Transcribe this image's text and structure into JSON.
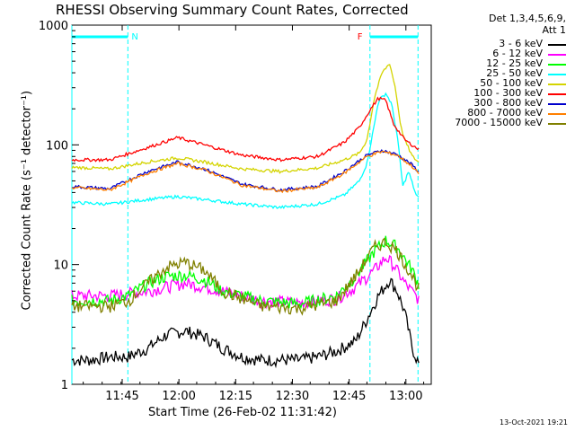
{
  "header": {
    "title": "RHESSI Observing Summary Count Rates, Corrected",
    "det_line1": "Det 1,3,4,5,6,9,",
    "det_line2": "Att 1",
    "timestamp": "13-Oct-2021 19:21"
  },
  "chart_data": {
    "type": "line",
    "title": "RHESSI Observing Summary Count Rates, Corrected",
    "xlabel": "Start Time (26-Feb-02 11:31:42)",
    "ylabel": "Corrected Count Rate (s⁻¹ detector⁻¹)",
    "yscale": "log",
    "ylim": [
      1,
      1000
    ],
    "xlim_minutes": [
      0,
      95
    ],
    "x_ticks": [
      {
        "label": "11:45",
        "t": 13.3
      },
      {
        "label": "12:00",
        "t": 28.3
      },
      {
        "label": "12:15",
        "t": 43.3
      },
      {
        "label": "12:30",
        "t": 58.3
      },
      {
        "label": "12:45",
        "t": 73.3
      },
      {
        "label": "13:00",
        "t": 88.3
      }
    ],
    "y_ticks": [
      {
        "label": "1",
        "v": 1
      },
      {
        "label": "10",
        "v": 10
      },
      {
        "label": "100",
        "v": 100
      },
      {
        "label": "1000",
        "v": 1000
      }
    ],
    "annotations": [
      {
        "label": "N",
        "t_start": 0,
        "t_end": 14.8,
        "color": "#00ffff"
      },
      {
        "label": "F",
        "t_start": 78.8,
        "t_end": 91.5,
        "color": "#00ffff"
      }
    ],
    "series": [
      {
        "name": "3 - 6 keV",
        "color": "#000000",
        "t": [
          0,
          5,
          10,
          15,
          20,
          25,
          30,
          35,
          40,
          45,
          50,
          55,
          60,
          65,
          70,
          75,
          78,
          81,
          84,
          86,
          88,
          90,
          92
        ],
        "values": [
          1.6,
          1.6,
          1.7,
          1.7,
          2.0,
          2.6,
          2.8,
          2.5,
          2.0,
          1.7,
          1.6,
          1.6,
          1.6,
          1.7,
          1.9,
          2.3,
          3.5,
          5.5,
          7.5,
          6.0,
          4.0,
          2.0,
          1.4
        ]
      },
      {
        "name": "6 - 12 keV",
        "color": "#ff00ff",
        "t": [
          0,
          10,
          20,
          25,
          30,
          35,
          40,
          50,
          60,
          70,
          75,
          80,
          83,
          85,
          88,
          92
        ],
        "values": [
          5.5,
          5.5,
          6.0,
          6.5,
          7.0,
          6.5,
          6.0,
          5.0,
          4.8,
          5.2,
          6.5,
          9.0,
          11.5,
          10.0,
          7.0,
          5.0
        ]
      },
      {
        "name": "12 - 25 keV",
        "color": "#00ff00",
        "t": [
          0,
          10,
          15,
          20,
          25,
          30,
          35,
          40,
          50,
          60,
          70,
          75,
          80,
          83,
          86,
          90,
          92
        ],
        "values": [
          5.0,
          5.0,
          5.5,
          7.0,
          8.0,
          8.2,
          7.5,
          6.0,
          5.0,
          4.7,
          5.5,
          8.0,
          13.0,
          16.0,
          14.0,
          9.0,
          6.5
        ]
      },
      {
        "name": "25 - 50 keV",
        "color": "#00ffff",
        "t": [
          0,
          10,
          20,
          28,
          35,
          45,
          55,
          65,
          72,
          76,
          78,
          80,
          81,
          83,
          84.5,
          86,
          87.5,
          89,
          91,
          92
        ],
        "values": [
          33,
          32,
          35,
          37,
          35,
          32,
          30,
          32,
          38,
          50,
          70,
          150,
          230,
          270,
          220,
          120,
          45,
          60,
          38,
          35
        ]
      },
      {
        "name": "50 - 100 keV",
        "color": "#d4d400",
        "t": [
          0,
          10,
          20,
          28,
          35,
          45,
          55,
          65,
          72,
          76,
          78,
          80,
          82,
          84,
          85.5,
          87,
          88,
          90,
          92
        ],
        "values": [
          65,
          63,
          72,
          78,
          72,
          63,
          60,
          64,
          75,
          85,
          110,
          250,
          400,
          480,
          300,
          140,
          110,
          80,
          70
        ]
      },
      {
        "name": "100 - 300 keV",
        "color": "#ff0000",
        "t": [
          0,
          10,
          20,
          28,
          35,
          45,
          55,
          65,
          72,
          76,
          79,
          81,
          83,
          85,
          88,
          92
        ],
        "values": [
          75,
          75,
          95,
          115,
          100,
          82,
          75,
          80,
          105,
          140,
          200,
          245,
          235,
          150,
          110,
          90
        ]
      },
      {
        "name": "300 - 800 keV",
        "color": "#0000cc",
        "t": [
          0,
          10,
          20,
          28,
          35,
          45,
          55,
          65,
          72,
          78,
          82,
          86,
          90,
          92
        ],
        "values": [
          45,
          43,
          60,
          72,
          63,
          47,
          42,
          45,
          60,
          82,
          90,
          83,
          68,
          58
        ]
      },
      {
        "name": "800 - 7000 keV",
        "color": "#ff8000",
        "t": [
          0,
          10,
          20,
          28,
          35,
          45,
          55,
          65,
          72,
          78,
          82,
          86,
          90,
          92
        ],
        "values": [
          44,
          42,
          58,
          70,
          62,
          46,
          41,
          44,
          58,
          80,
          88,
          82,
          66,
          56
        ]
      },
      {
        "name": "7000 - 15000 keV",
        "color": "#808000",
        "t": [
          0,
          10,
          15,
          20,
          25,
          30,
          35,
          40,
          50,
          60,
          70,
          75,
          80,
          83,
          86,
          90,
          92
        ],
        "values": [
          4.5,
          4.5,
          5.0,
          7.0,
          9.5,
          10.5,
          9.0,
          6.0,
          4.5,
          4.3,
          5.0,
          8.0,
          14.0,
          15.5,
          13.0,
          8.0,
          6.0
        ]
      }
    ]
  }
}
